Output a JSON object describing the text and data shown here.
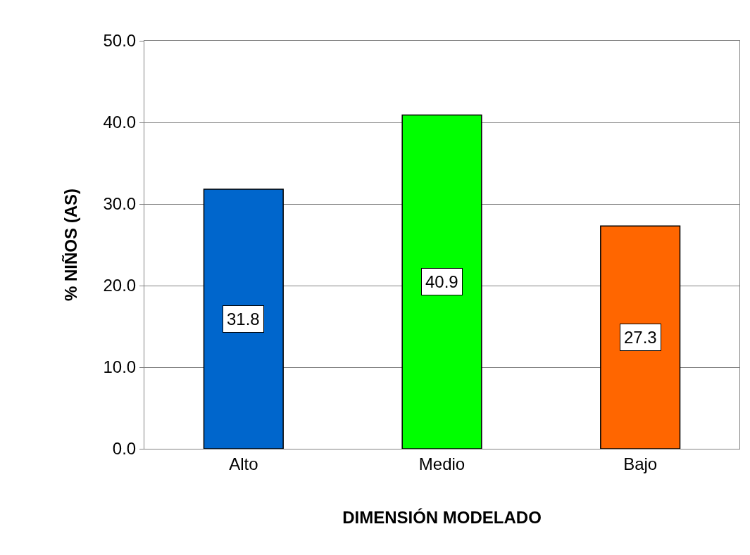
{
  "chart_data": {
    "type": "bar",
    "xlabel": "DIMENSIÓN MODELADO",
    "ylabel": "% NIÑOS (AS)",
    "categories": [
      "Alto",
      "Medio",
      "Bajo"
    ],
    "values": [
      31.8,
      40.9,
      27.3
    ],
    "colors": [
      "#0066cc",
      "#00ff00",
      "#ff6600"
    ],
    "ylim": [
      0,
      50
    ],
    "yticks": [
      {
        "value": 0,
        "label": "0.0"
      },
      {
        "value": 10,
        "label": "10.0"
      },
      {
        "value": 20,
        "label": "20.0"
      },
      {
        "value": 30,
        "label": "30.0"
      },
      {
        "value": 40,
        "label": "40.0"
      },
      {
        "value": 50,
        "label": "50.0"
      }
    ],
    "grid": "y",
    "data_labels": true,
    "legend": false
  }
}
